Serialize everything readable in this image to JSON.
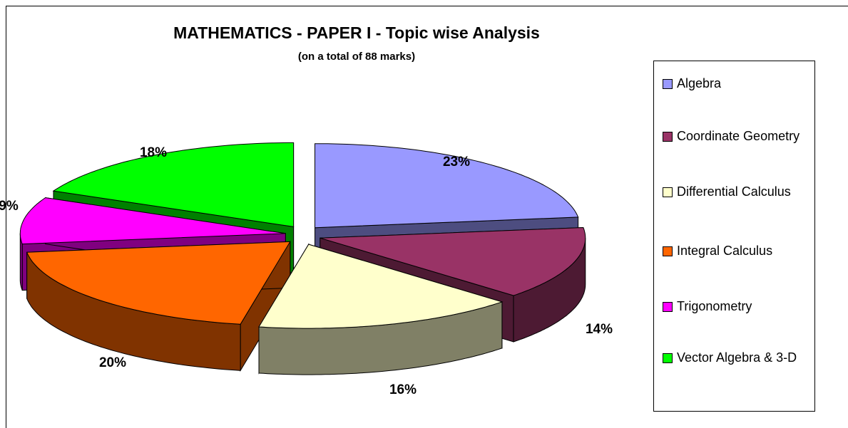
{
  "chart_data": {
    "type": "pie3d",
    "title": "MATHEMATICS - PAPER I - Topic wise Analysis",
    "subtitle": "(on a total of 88 marks)",
    "categories": [
      "Algebra",
      "Coordinate Geometry",
      "Differential Calculus",
      "Integral Calculus",
      "Trigonometry",
      "Vector Algebra & 3-D"
    ],
    "values": [
      23,
      14,
      16,
      20,
      9,
      18
    ],
    "value_labels": [
      "23%",
      "14%",
      "16%",
      "20%",
      "9%",
      "18%"
    ],
    "colors": [
      "#9999ff",
      "#993366",
      "#ffffcc",
      "#ff6600",
      "#ff00ff",
      "#00ff00"
    ],
    "side_colors": [
      "#4d4d80",
      "#4d1a33",
      "#808066",
      "#803300",
      "#800080",
      "#008000"
    ],
    "legend": "right"
  }
}
